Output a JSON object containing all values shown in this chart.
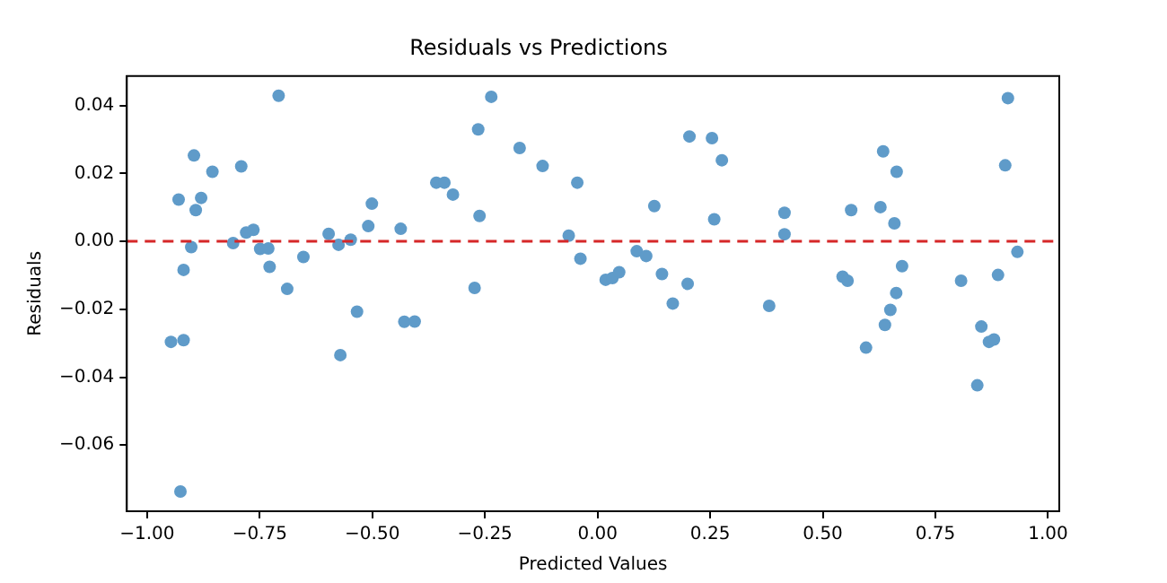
{
  "chart_data": {
    "type": "scatter",
    "title": "Residuals vs Predictions",
    "xlabel": "Predicted Values",
    "ylabel": "Residuals",
    "xlim": [
      -1.045,
      1.025
    ],
    "ylim": [
      -0.0795,
      0.0487
    ],
    "xticks": [
      {
        "value": -1,
        "label": "−1.00"
      },
      {
        "value": -0.75,
        "label": "−0.75"
      },
      {
        "value": -0.5,
        "label": "−0.50"
      },
      {
        "value": -0.25,
        "label": "−0.25"
      },
      {
        "value": 0,
        "label": "0.00"
      },
      {
        "value": 0.25,
        "label": "0.25"
      },
      {
        "value": 0.5,
        "label": "0.50"
      },
      {
        "value": 0.75,
        "label": "0.75"
      },
      {
        "value": 1,
        "label": "1.00"
      }
    ],
    "yticks": [
      {
        "value": -0.06,
        "label": "−0.06"
      },
      {
        "value": -0.04,
        "label": "−0.04"
      },
      {
        "value": -0.02,
        "label": "−0.02"
      },
      {
        "value": 0,
        "label": "0.00"
      },
      {
        "value": 0.02,
        "label": "0.02"
      },
      {
        "value": 0.04,
        "label": "0.04"
      }
    ],
    "grid": false,
    "legend": false,
    "marker": "circle",
    "ref_lines": [
      {
        "axis": "y",
        "value": 0,
        "color": "#d62728",
        "line_style": "dashed"
      }
    ],
    "series": [
      {
        "color": "#5f9bc9",
        "x": [
          -0.947,
          -0.93,
          -0.926,
          -0.919,
          -0.919,
          -0.902,
          -0.896,
          -0.892,
          -0.88,
          -0.855,
          -0.809,
          -0.791,
          -0.78,
          -0.764,
          -0.749,
          -0.731,
          -0.728,
          -0.708,
          -0.689,
          -0.653,
          -0.597,
          -0.575,
          -0.571,
          -0.548,
          -0.534,
          -0.509,
          -0.501,
          -0.437,
          -0.429,
          -0.406,
          -0.358,
          -0.34,
          -0.321,
          -0.273,
          -0.265,
          -0.262,
          -0.236,
          -0.173,
          -0.122,
          -0.064,
          -0.045,
          -0.038,
          0.018,
          0.033,
          0.048,
          0.087,
          0.108,
          0.126,
          0.143,
          0.167,
          0.2,
          0.204,
          0.254,
          0.259,
          0.276,
          0.381,
          0.415,
          0.415,
          0.544,
          0.555,
          0.563,
          0.596,
          0.628,
          0.634,
          0.638,
          0.65,
          0.659,
          0.663,
          0.664,
          0.676,
          0.807,
          0.843,
          0.852,
          0.869,
          0.88,
          0.889,
          0.905,
          0.911,
          0.932
        ],
        "values": [
          -0.0296,
          0.0123,
          -0.0737,
          -0.0291,
          -0.0084,
          -0.0017,
          0.0253,
          0.0092,
          0.0128,
          0.0205,
          -0.0005,
          0.0221,
          0.0026,
          0.0034,
          -0.0022,
          -0.0021,
          -0.0075,
          0.0429,
          -0.014,
          -0.0046,
          0.0022,
          -0.001,
          -0.0335,
          0.0005,
          -0.0207,
          0.0045,
          0.0111,
          0.0037,
          -0.0237,
          -0.0236,
          0.0173,
          0.0173,
          0.0138,
          -0.0137,
          0.033,
          0.0075,
          0.0426,
          0.0275,
          0.0222,
          0.0017,
          0.0173,
          -0.0051,
          -0.0113,
          -0.0108,
          -0.0091,
          -0.0029,
          -0.0043,
          0.0104,
          -0.0096,
          -0.0183,
          -0.0125,
          0.0309,
          0.0304,
          0.0065,
          0.0239,
          -0.019,
          0.0084,
          0.0021,
          -0.0104,
          -0.0116,
          0.0092,
          -0.0313,
          0.0101,
          0.0265,
          -0.0246,
          -0.0202,
          0.0053,
          -0.0152,
          0.0205,
          -0.0073,
          -0.0116,
          -0.0424,
          -0.0251,
          -0.0296,
          -0.0289,
          -0.0099,
          0.0224,
          0.0422,
          -0.0031
        ]
      }
    ]
  }
}
